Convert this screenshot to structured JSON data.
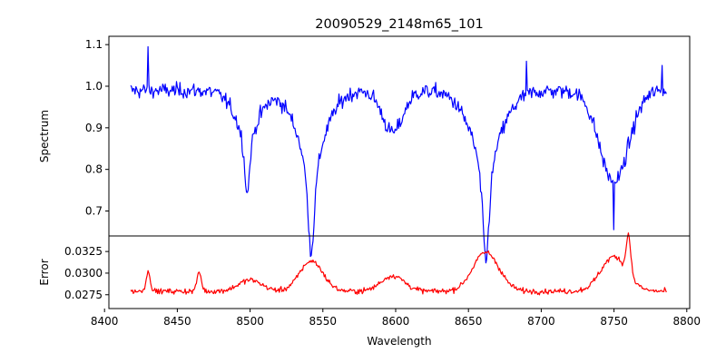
{
  "chart_data": {
    "type": "line",
    "title": "20090529_2148m65_101",
    "xlabel": "Wavelength",
    "x_range": [
      8418,
      8786
    ],
    "xlim": [
      8403,
      8802
    ],
    "x_ticks": [
      "8400",
      "8450",
      "8500",
      "8550",
      "8600",
      "8650",
      "8700",
      "8750",
      "8800"
    ],
    "x_tick_values": [
      8400,
      8450,
      8500,
      8550,
      8600,
      8650,
      8700,
      8750,
      8800
    ],
    "spectrum": {
      "ylabel": "Spectrum",
      "color": "#0000ff",
      "ylim": [
        0.64,
        1.12
      ],
      "y_ticks": [
        "0.7",
        "0.8",
        "0.9",
        "1.0",
        "1.1"
      ],
      "y_tick_values": [
        0.7,
        0.8,
        0.9,
        1.0,
        1.1
      ],
      "continuum": 0.99,
      "noise": 0.018,
      "absorption_lines": [
        {
          "center": 8498,
          "depth": 0.17,
          "width": 2.2
        },
        {
          "center": 8542,
          "depth": 0.27,
          "width": 3.0
        },
        {
          "center": 8662,
          "depth": 0.29,
          "width": 3.0
        }
      ],
      "broad_features": [
        {
          "center": 8498,
          "depth": 0.08,
          "width": 9
        },
        {
          "center": 8542,
          "depth": 0.12,
          "width": 11
        },
        {
          "center": 8598,
          "depth": 0.1,
          "width": 7
        },
        {
          "center": 8662,
          "depth": 0.12,
          "width": 12
        },
        {
          "center": 8750,
          "depth": 0.22,
          "width": 10
        }
      ],
      "sharp_points": [
        {
          "x": 8750,
          "y": 0.655
        },
        {
          "x": 8430,
          "y": 1.095
        },
        {
          "x": 8690,
          "y": 1.06
        },
        {
          "x": 8783,
          "y": 1.05
        }
      ]
    },
    "error": {
      "ylabel": "Error",
      "color": "#ff0000",
      "ylim": [
        0.0259,
        0.0343
      ],
      "y_ticks": [
        "0.0275",
        "0.0300",
        "0.0325"
      ],
      "y_tick_values": [
        0.0275,
        0.03,
        0.0325
      ],
      "baseline": 0.0279,
      "noise": 0.0003,
      "bumps": [
        {
          "center": 8430,
          "height": 0.0022,
          "width": 1.5
        },
        {
          "center": 8465,
          "height": 0.0022,
          "width": 1.5
        },
        {
          "center": 8500,
          "height": 0.0013,
          "width": 8
        },
        {
          "center": 8542,
          "height": 0.0035,
          "width": 8
        },
        {
          "center": 8598,
          "height": 0.0018,
          "width": 8
        },
        {
          "center": 8662,
          "height": 0.0045,
          "width": 9
        },
        {
          "center": 8750,
          "height": 0.004,
          "width": 9
        },
        {
          "center": 8760,
          "height": 0.0045,
          "width": 1.5
        }
      ]
    }
  }
}
